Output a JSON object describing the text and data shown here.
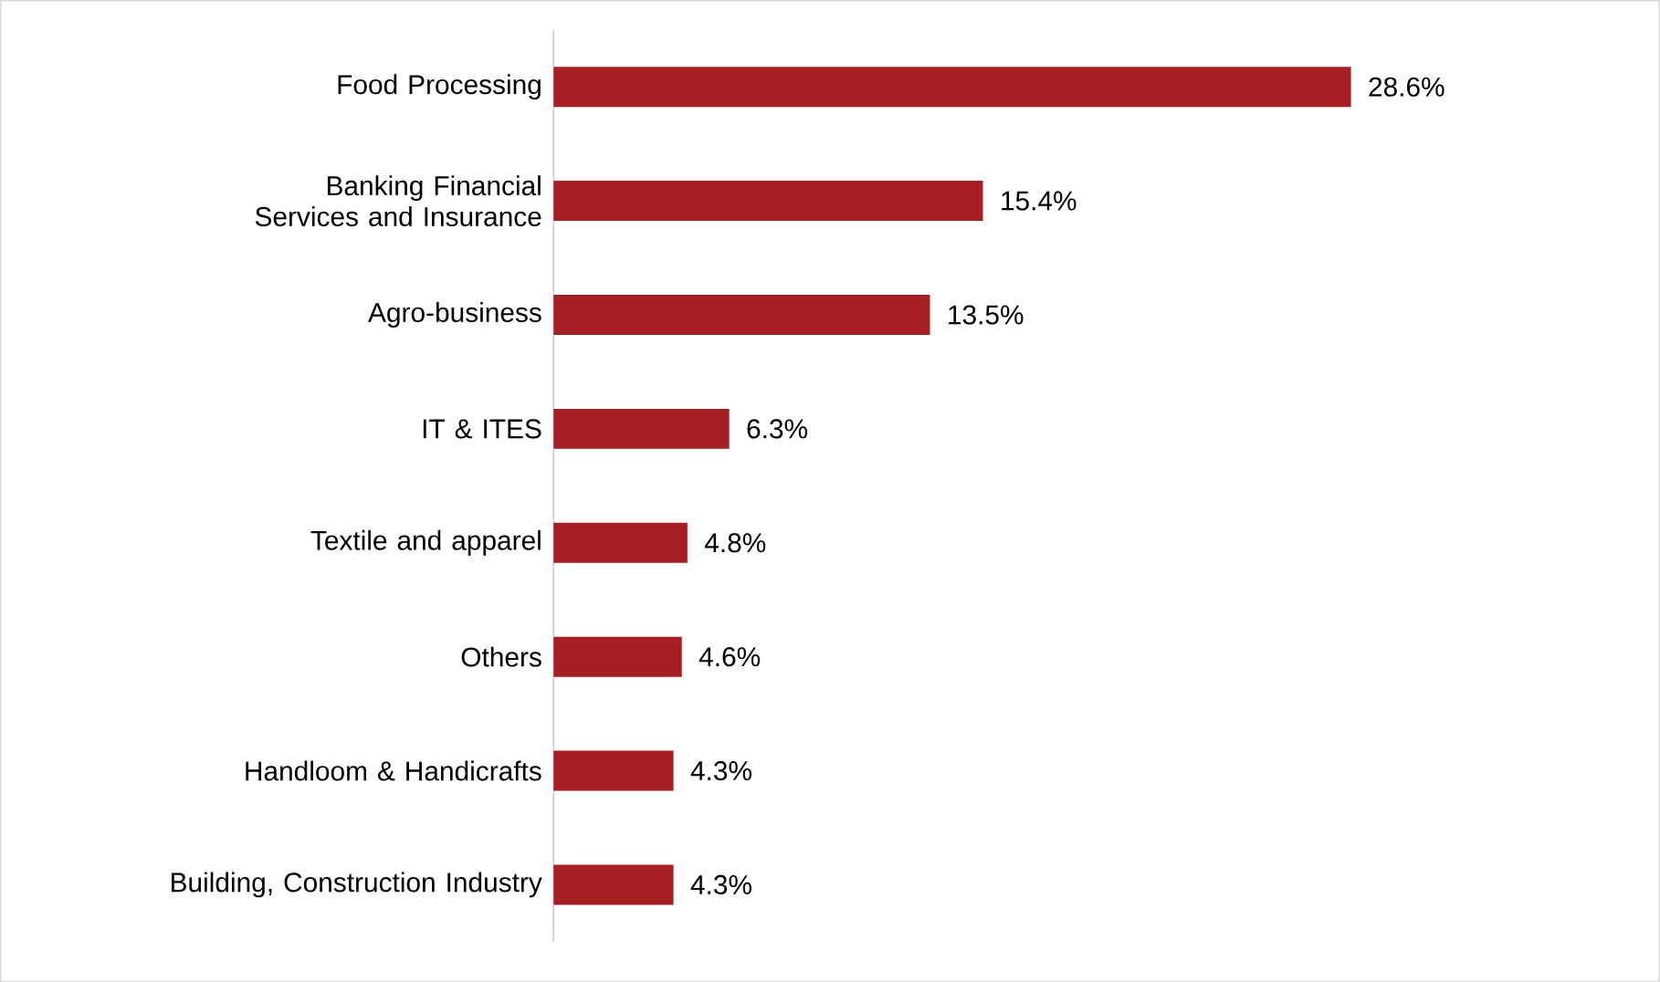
{
  "chart_data": {
    "type": "bar",
    "orientation": "horizontal",
    "categories": [
      "Food Processing",
      "Banking Financial Services and Insurance",
      "Agro-business",
      "IT & ITES",
      "Textile and apparel",
      "Others",
      "Handloom & Handicrafts",
      "Building, Construction Industry"
    ],
    "values": [
      28.6,
      15.4,
      13.5,
      6.3,
      4.8,
      4.6,
      4.3,
      4.3
    ],
    "value_labels": [
      "28.6%",
      "15.4%",
      "13.5%",
      "6.3%",
      "4.8%",
      "4.6%",
      "4.3%",
      "4.3%"
    ],
    "color": "#a51f23"
  }
}
